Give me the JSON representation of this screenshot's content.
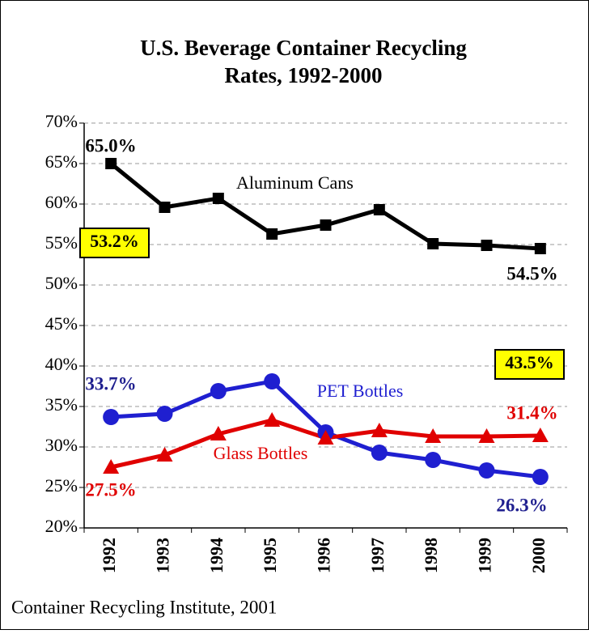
{
  "chart_data": {
    "type": "line",
    "title": [
      "U.S. Beverage Container Recycling",
      "Rates, 1992-2000"
    ],
    "source": "Container Recycling Institute, 2001",
    "categories": [
      "1992",
      "1993",
      "1994",
      "1995",
      "1996",
      "1997",
      "1998",
      "1999",
      "2000"
    ],
    "series": [
      {
        "name": "Aluminum Cans",
        "color": "#000000",
        "label_color": "#000000",
        "marker": "square",
        "values": [
          65.0,
          59.6,
          60.7,
          56.3,
          57.4,
          59.3,
          55.1,
          54.9,
          54.5
        ],
        "value_labels": [
          "65.0%",
          null,
          null,
          null,
          null,
          null,
          null,
          null,
          "54.5%"
        ]
      },
      {
        "name": "PET Bottles",
        "color": "#1f1fd0",
        "label_color": "#1f1f8f",
        "marker": "circle",
        "values": [
          33.7,
          34.1,
          36.9,
          38.1,
          31.8,
          29.3,
          28.4,
          27.1,
          26.3
        ],
        "value_labels": [
          "33.7%",
          null,
          null,
          null,
          null,
          null,
          null,
          null,
          "26.3%"
        ]
      },
      {
        "name": "Glass Bottles",
        "color": "#e00000",
        "label_color": "#e00000",
        "marker": "triangle",
        "values": [
          27.5,
          29.0,
          31.6,
          33.3,
          31.1,
          32.0,
          31.3,
          31.3,
          31.4
        ],
        "value_labels": [
          "27.5%",
          null,
          null,
          null,
          null,
          null,
          null,
          null,
          "31.4%"
        ]
      }
    ],
    "annotations": [
      "53.2%",
      "43.5%"
    ],
    "ylim": [
      20,
      70
    ],
    "yticks": [
      {
        "value": 20,
        "label": "20%"
      },
      {
        "value": 25,
        "label": "25%"
      },
      {
        "value": 30,
        "label": "30%"
      },
      {
        "value": 35,
        "label": "35%"
      },
      {
        "value": 40,
        "label": "40%"
      },
      {
        "value": 45,
        "label": "45%"
      },
      {
        "value": 50,
        "label": "50%"
      },
      {
        "value": 55,
        "label": "55%"
      },
      {
        "value": 60,
        "label": "60%"
      },
      {
        "value": 65,
        "label": "65%"
      },
      {
        "value": 70,
        "label": "70%"
      }
    ],
    "grid": true
  }
}
